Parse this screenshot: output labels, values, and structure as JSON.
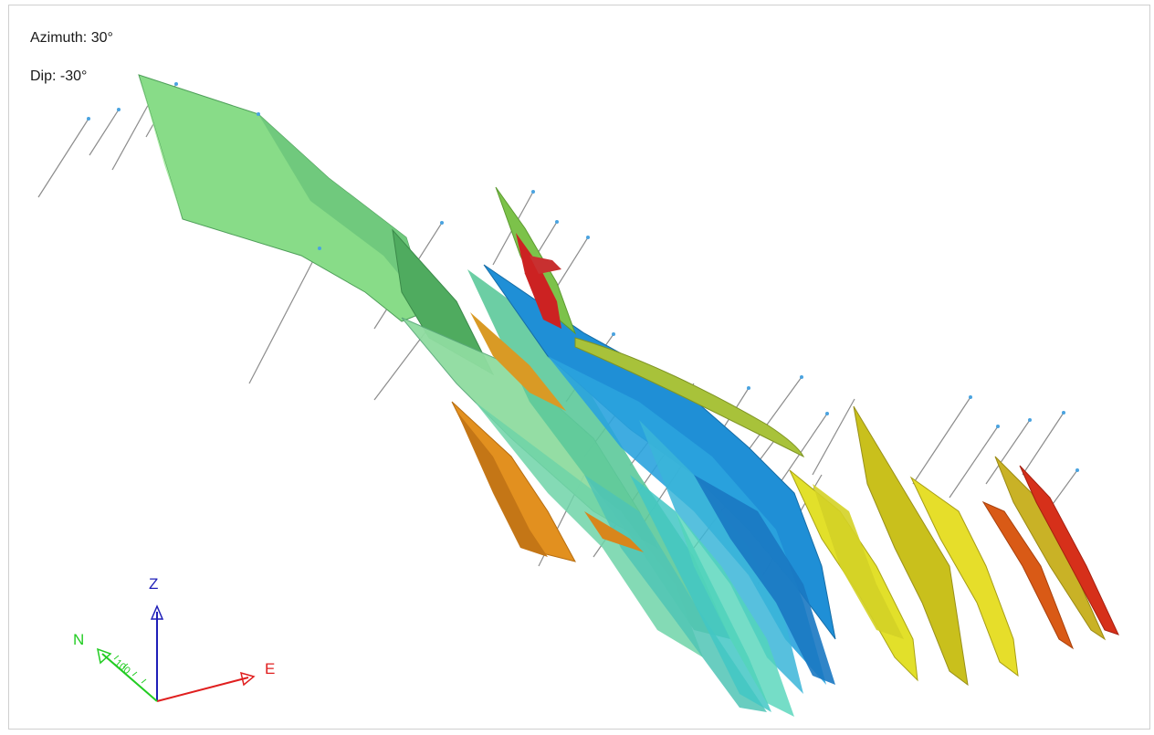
{
  "hud": {
    "azimuth_label": "Azimuth: 30°",
    "dip_label": "Dip: -30°"
  },
  "axes": {
    "z_label": "Z",
    "n_label": "N",
    "e_label": "E",
    "scale_label": "100",
    "z_color": "#1f1fb8",
    "n_color": "#22cc22",
    "e_color": "#e01f1f"
  },
  "colors": {
    "green_light": "#8fe08a",
    "green_dark": "#4fa85c",
    "teal": "#47c9a8",
    "blue": "#1f8fd6",
    "yellow": "#d7cc19",
    "orange": "#e0891c",
    "red": "#d62814",
    "drillhole": "#8a8a8a"
  }
}
